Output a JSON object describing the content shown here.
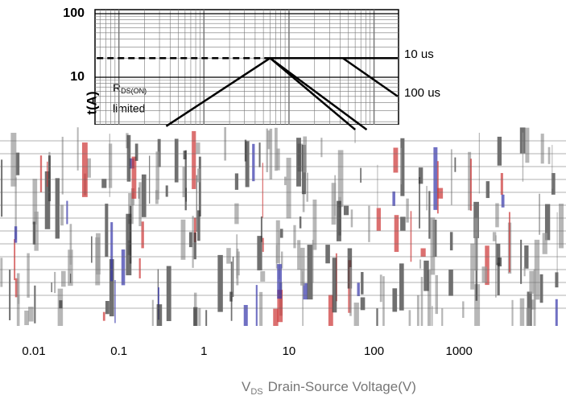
{
  "chart_data": {
    "type": "line",
    "y_label": "t(A)",
    "x_label": {
      "symbol": "V",
      "subscript": "DS",
      "text": "Drain-Source Voltage(V)"
    },
    "annotation": {
      "symbol": "R",
      "subscript": "DS(ON)",
      "text": "limited"
    },
    "xscale": "log",
    "yscale": "log",
    "xlim": [
      0.004,
      2000
    ],
    "ylim": [
      0.001,
      100
    ],
    "xticks": [
      0.01,
      0.1,
      1,
      10,
      100,
      1000
    ],
    "yticks": [
      10,
      100
    ],
    "grid": true,
    "series": [
      {
        "x": [
          0.055,
          6
        ],
        "values": [
          20,
          20
        ],
        "color": "#000000",
        "dashed": true
      },
      {
        "x": [
          0.36,
          6
        ],
        "values": [
          1.7,
          20
        ],
        "color": "#000000"
      },
      {
        "name": "10 us",
        "x": [
          6,
          190
        ],
        "values": [
          20,
          20
        ],
        "color": "#000000"
      },
      {
        "name": "100 us",
        "x": [
          6,
          43,
          190
        ],
        "values": [
          20,
          20,
          5
        ],
        "color": "#000000"
      },
      {
        "x": [
          6,
          82
        ],
        "values": [
          20,
          1.5
        ],
        "color": "#000000"
      },
      {
        "x": [
          6,
          60
        ],
        "values": [
          20,
          1.5
        ],
        "color": "#000000"
      }
    ]
  }
}
